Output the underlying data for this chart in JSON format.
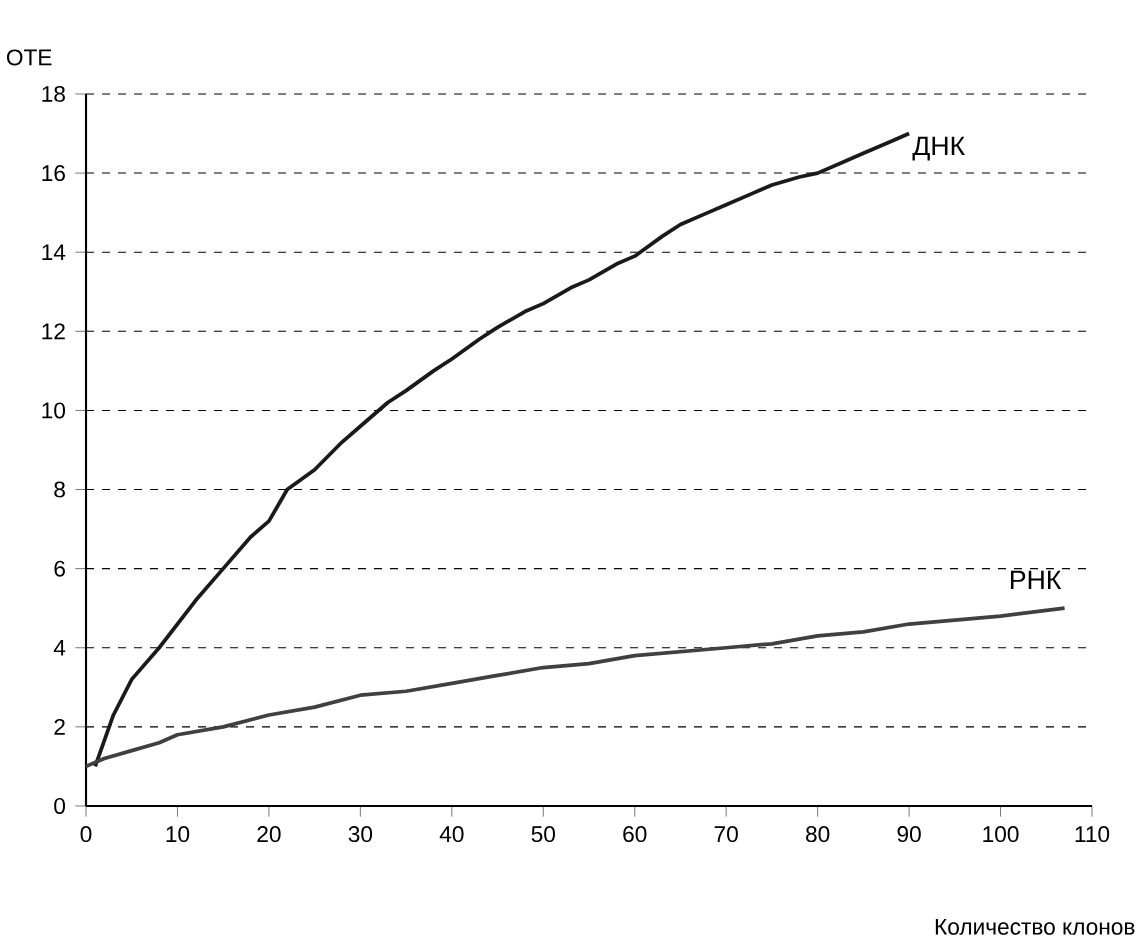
{
  "chart_data": {
    "type": "line",
    "xlabel": "Количество клонов",
    "ylabel": "ОТЕ",
    "xlim": [
      0,
      110
    ],
    "xticks": [
      0,
      10,
      20,
      30,
      40,
      50,
      60,
      70,
      80,
      90,
      100,
      110
    ],
    "ylim": [
      0,
      18
    ],
    "yticks": [
      0,
      2,
      4,
      6,
      8,
      10,
      12,
      14,
      16,
      18
    ],
    "grid": "y",
    "line_style": "solid",
    "marker": "none",
    "series": [
      {
        "name": "ДНК",
        "color": "#1a1a1a",
        "x": [
          1,
          3,
          5,
          8,
          10,
          12,
          15,
          18,
          20,
          22,
          25,
          28,
          30,
          33,
          35,
          38,
          40,
          43,
          45,
          48,
          50,
          53,
          55,
          58,
          60,
          63,
          65,
          68,
          70,
          73,
          75,
          78,
          80,
          83,
          85,
          88,
          90
        ],
        "values": [
          1,
          2.3,
          3.2,
          4,
          4.6,
          5.2,
          6,
          6.8,
          7.2,
          8,
          8.5,
          9.2,
          9.6,
          10.2,
          10.5,
          11,
          11.3,
          11.8,
          12.1,
          12.5,
          12.7,
          13.1,
          13.3,
          13.7,
          13.9,
          14.4,
          14.7,
          15,
          15.2,
          15.5,
          15.7,
          15.9,
          16,
          16.3,
          16.5,
          16.8,
          17
        ]
      },
      {
        "name": "РНК",
        "color": "#404040",
        "x": [
          0,
          2,
          5,
          8,
          10,
          15,
          20,
          25,
          30,
          35,
          40,
          45,
          50,
          55,
          60,
          65,
          70,
          75,
          80,
          85,
          90,
          95,
          100,
          107
        ],
        "values": [
          1,
          1.2,
          1.4,
          1.6,
          1.8,
          2,
          2.3,
          2.5,
          2.8,
          2.9,
          3.1,
          3.3,
          3.5,
          3.6,
          3.8,
          3.9,
          4,
          4.1,
          4.3,
          4.4,
          4.6,
          4.7,
          4.8,
          5
        ]
      }
    ]
  }
}
